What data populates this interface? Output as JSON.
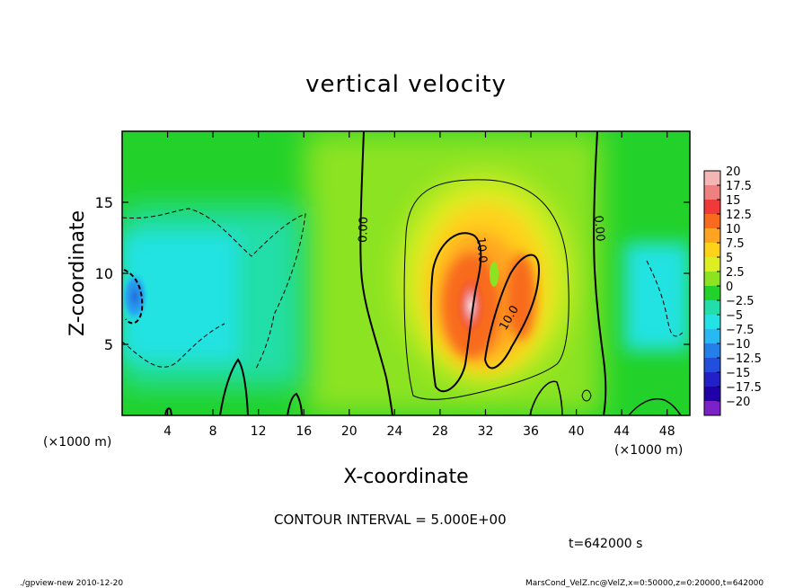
{
  "chart_data": {
    "type": "heatmap",
    "title": "vertical velocity",
    "xlabel": "X-coordinate",
    "ylabel": "Z-coordinate",
    "x_unit": "(×1000 m)",
    "y_unit": "(×1000 m)",
    "xlim": [
      0,
      50
    ],
    "ylim": [
      0,
      20
    ],
    "x_ticks": [
      4,
      8,
      12,
      16,
      20,
      24,
      28,
      32,
      36,
      40,
      44,
      48
    ],
    "y_ticks": [
      5,
      10,
      15
    ],
    "colorbar": {
      "labels": [
        "20",
        "17.5",
        "15",
        "12.5",
        "10",
        "7.5",
        "5",
        "2.5",
        "0",
        "−2.5",
        "−5",
        "−7.5",
        "−10",
        "−12.5",
        "−15",
        "−17.5",
        "−20"
      ],
      "colors": [
        "#f4b5b5",
        "#ee8080",
        "#f03a3a",
        "#f86a1e",
        "#ffa420",
        "#ffd21a",
        "#ddee22",
        "#8ce322",
        "#22d22a",
        "#22dea8",
        "#22e2e2",
        "#28b8f2",
        "#2280e8",
        "#224ede",
        "#2220c8",
        "#2000a8",
        "#7a22c8"
      ]
    },
    "contour_labels": [
      "0.00",
      "10.0",
      "10.0",
      "0.00"
    ],
    "contour_interval": "CONTOUR INTERVAL = 5.000E+00",
    "time_label": "t=642000 s"
  },
  "footer": {
    "left": "./gpview-new  2010-12-20",
    "right": "MarsCond_VelZ.nc@VelZ,x=0:50000,z=0:20000,t=642000"
  }
}
